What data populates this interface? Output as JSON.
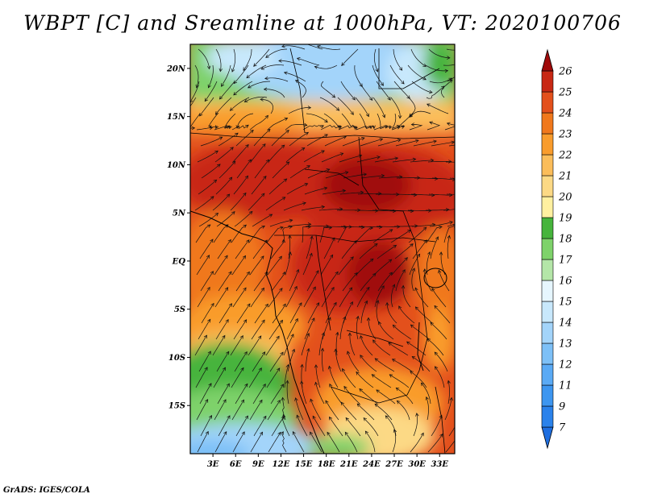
{
  "title": "WBPT [C] and Sreamline at 1000hPa, VT: 2020100706",
  "credit": "GrADS: IGES/COLA",
  "chart_data": {
    "type": "heatmap",
    "variable": "Wet-bulb potential temperature (C) with 1000hPa streamlines",
    "lon_range": [
      0,
      35
    ],
    "lat_range": [
      -20,
      22.5
    ],
    "x_ticks": [
      {
        "value": 3,
        "label": "3E"
      },
      {
        "value": 6,
        "label": "6E"
      },
      {
        "value": 9,
        "label": "9E"
      },
      {
        "value": 12,
        "label": "12E"
      },
      {
        "value": 15,
        "label": "15E"
      },
      {
        "value": 18,
        "label": "18E"
      },
      {
        "value": 21,
        "label": "21E"
      },
      {
        "value": 24,
        "label": "24E"
      },
      {
        "value": 27,
        "label": "27E"
      },
      {
        "value": 30,
        "label": "30E"
      },
      {
        "value": 33,
        "label": "33E"
      }
    ],
    "y_ticks": [
      {
        "value": 20,
        "label": "20N"
      },
      {
        "value": 15,
        "label": "15N"
      },
      {
        "value": 10,
        "label": "10N"
      },
      {
        "value": 5,
        "label": "5N"
      },
      {
        "value": 0,
        "label": "EQ"
      },
      {
        "value": -5,
        "label": "5S"
      },
      {
        "value": -10,
        "label": "10S"
      },
      {
        "value": -15,
        "label": "15S"
      }
    ],
    "colorbar": {
      "labels": [
        "7",
        "9",
        "11",
        "12",
        "13",
        "14",
        "15",
        "16",
        "17",
        "18",
        "19",
        "20",
        "21",
        "22",
        "23",
        "24",
        "25",
        "26"
      ],
      "colors": [
        "#1e6ee0",
        "#2a82eb",
        "#3d96f0",
        "#5aaaf5",
        "#7dc0f7",
        "#a3d4fa",
        "#c8e8fc",
        "#e6f6fe",
        "#b4e6a8",
        "#7ed26a",
        "#46b43c",
        "#fff0a0",
        "#fcd985",
        "#fbbd5a",
        "#f99c2c",
        "#f0781c",
        "#e3501c",
        "#c82814",
        "#a00a0a"
      ]
    }
  }
}
